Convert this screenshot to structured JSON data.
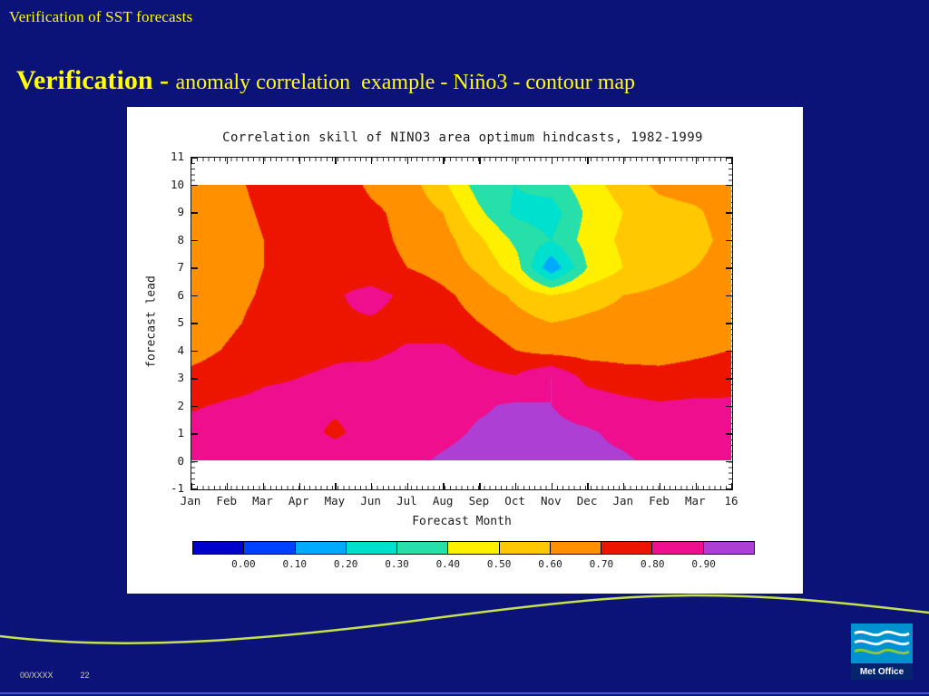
{
  "slide": {
    "kicker": "Verification of SST forecasts",
    "title_bold": "Verification - ",
    "title_rest": "anomaly correlation  example - Niño3 - contour map",
    "footer_left": "00/XXXX",
    "footer_page": "22",
    "logo_text": "Met Office",
    "background_color": "#0b1278",
    "title_color": "#ffff00",
    "wave_color": "#c6e14e"
  },
  "chart_data": {
    "type": "heatmap",
    "title": "Correlation skill of NINO3 area optimum hindcasts, 1982-1999",
    "xlabel": "Forecast Month",
    "ylabel": "forecast lead",
    "x_ticklabels": [
      "Jan",
      "Feb",
      "Mar",
      "Apr",
      "May",
      "Jun",
      "Jul",
      "Aug",
      "Sep",
      "Oct",
      "Nov",
      "Dec",
      "Jan",
      "Feb",
      "Mar",
      "16"
    ],
    "y_ticklabels": [
      "11",
      "10",
      "9",
      "8",
      "7",
      "6",
      "5",
      "4",
      "3",
      "2",
      "1",
      "0",
      "-1"
    ],
    "y_range": [
      -1,
      11
    ],
    "data_leads_top_to_bottom": [
      10,
      9,
      8,
      7,
      6,
      5,
      4,
      3,
      2,
      1,
      0
    ],
    "grid": false,
    "legend_position": "bottom",
    "values": [
      [
        0.65,
        0.68,
        0.72,
        0.76,
        0.76,
        0.68,
        0.65,
        0.52,
        0.35,
        0.3,
        0.34,
        0.46,
        0.54,
        0.62,
        0.65,
        0.66
      ],
      [
        0.64,
        0.67,
        0.71,
        0.76,
        0.78,
        0.72,
        0.67,
        0.6,
        0.42,
        0.28,
        0.25,
        0.42,
        0.5,
        0.56,
        0.58,
        0.66
      ],
      [
        0.63,
        0.66,
        0.7,
        0.75,
        0.78,
        0.73,
        0.68,
        0.64,
        0.52,
        0.38,
        0.3,
        0.44,
        0.52,
        0.55,
        0.55,
        0.65
      ],
      [
        0.63,
        0.66,
        0.7,
        0.74,
        0.77,
        0.74,
        0.7,
        0.66,
        0.58,
        0.45,
        0.12,
        0.4,
        0.5,
        0.56,
        0.6,
        0.66
      ],
      [
        0.63,
        0.67,
        0.71,
        0.76,
        0.79,
        0.83,
        0.78,
        0.72,
        0.66,
        0.58,
        0.5,
        0.56,
        0.6,
        0.62,
        0.64,
        0.67
      ],
      [
        0.64,
        0.68,
        0.73,
        0.77,
        0.79,
        0.79,
        0.77,
        0.74,
        0.7,
        0.64,
        0.6,
        0.62,
        0.63,
        0.64,
        0.66,
        0.68
      ],
      [
        0.66,
        0.71,
        0.76,
        0.78,
        0.79,
        0.78,
        0.81,
        0.82,
        0.76,
        0.7,
        0.66,
        0.66,
        0.66,
        0.66,
        0.68,
        0.7
      ],
      [
        0.73,
        0.76,
        0.79,
        0.8,
        0.81,
        0.83,
        0.85,
        0.85,
        0.83,
        0.81,
        0.9,
        0.77,
        0.74,
        0.73,
        0.74,
        0.75
      ],
      [
        0.79,
        0.81,
        0.82,
        0.82,
        0.82,
        0.84,
        0.85,
        0.87,
        0.89,
        0.91,
        0.9,
        0.86,
        0.83,
        0.81,
        0.82,
        0.82
      ],
      [
        0.83,
        0.85,
        0.85,
        0.84,
        0.78,
        0.85,
        0.86,
        0.88,
        0.91,
        0.92,
        0.92,
        0.91,
        0.88,
        0.86,
        0.85,
        0.85
      ],
      [
        0.85,
        0.86,
        0.86,
        0.86,
        0.86,
        0.87,
        0.88,
        0.91,
        0.93,
        0.93,
        0.93,
        0.92,
        0.91,
        0.88,
        0.88,
        0.88
      ]
    ],
    "colorbar": {
      "labels": [
        "0.00",
        "0.10",
        "0.20",
        "0.30",
        "0.40",
        "0.50",
        "0.60",
        "0.70",
        "0.80",
        "0.90"
      ],
      "thresholds": [
        0.0,
        0.1,
        0.2,
        0.3,
        0.4,
        0.5,
        0.6,
        0.7,
        0.8,
        0.9
      ],
      "colors": [
        "#0000cd",
        "#0041ff",
        "#00aaff",
        "#00e0cf",
        "#27dfa8",
        "#fff000",
        "#ffc800",
        "#ff9100",
        "#ee1500",
        "#ef0e8d",
        "#ae3fd4"
      ]
    }
  }
}
